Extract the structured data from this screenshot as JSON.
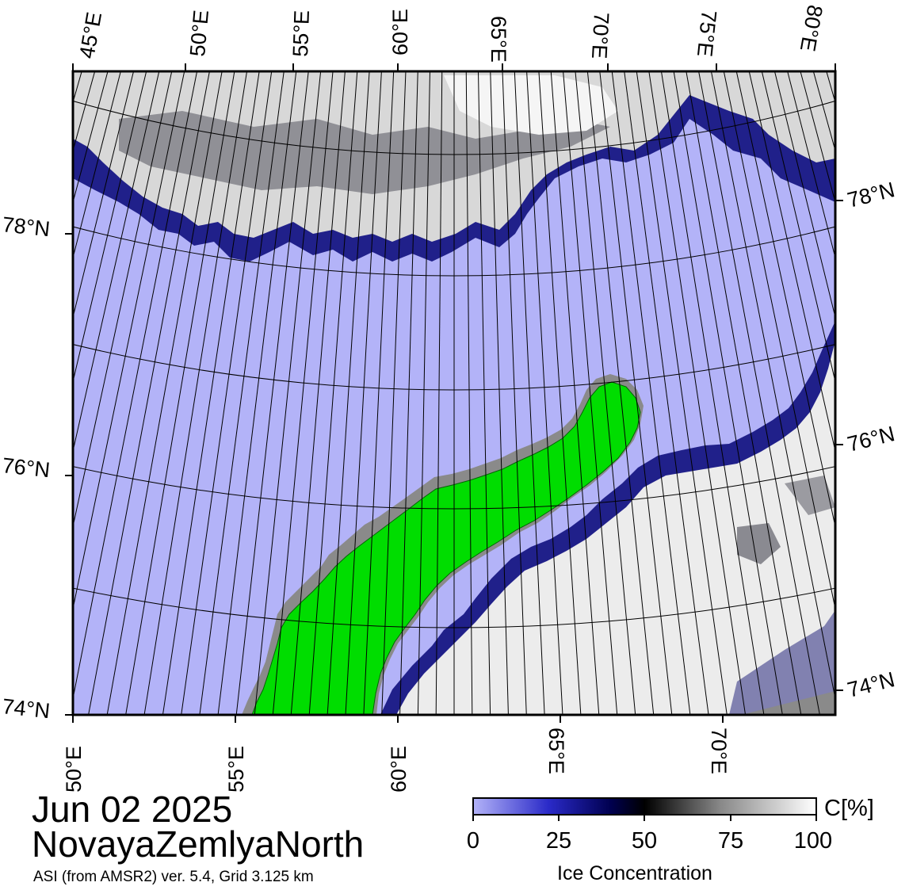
{
  "map": {
    "top_lon_labels": [
      "45°E",
      "50°E",
      "55°E",
      "60°E",
      "65°E",
      "70°E",
      "75°E",
      "80°E"
    ],
    "bottom_lon_labels": [
      "50°E",
      "55°E",
      "60°E",
      "65°E",
      "70°E"
    ],
    "left_lat_labels": [
      "78°N",
      "76°N",
      "74°N"
    ],
    "right_lat_labels": [
      "78°N",
      "76°N",
      "74°N"
    ],
    "colors": {
      "open_water": "#b3b3f8",
      "land": "#00dd00",
      "land_outline_grey": "#8a8a8a",
      "ice_high": "#f2f2f2",
      "ice_mid": "#333340",
      "ice_low": "#1a1a80",
      "grid": "#000000"
    }
  },
  "title": {
    "date": "Jun 02 2025",
    "region": "NovayaZemlyaNorth",
    "product": "ASI (from AMSR2) ver. 5.4,  Grid 3.125 km"
  },
  "colorbar": {
    "unit": "C[%]",
    "ticks": [
      "0",
      "25",
      "50",
      "75",
      "100"
    ],
    "title": "Ice Concentration",
    "min": 0,
    "max": 100,
    "colors": [
      "#b3b3f8",
      "#2a2ac8",
      "#000050",
      "#000000",
      "#888888",
      "#ffffff"
    ]
  }
}
